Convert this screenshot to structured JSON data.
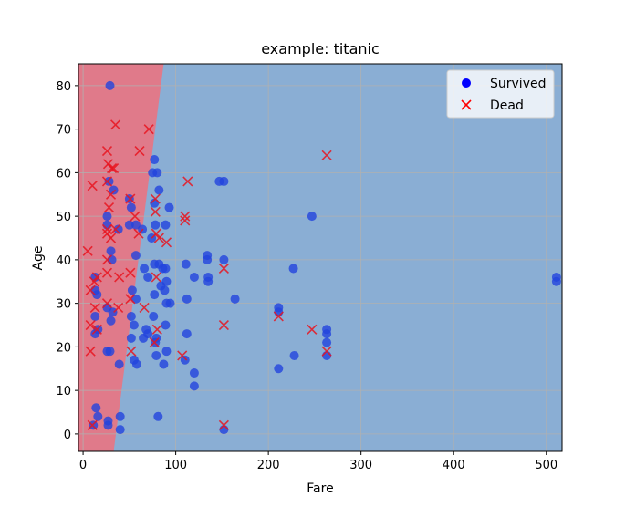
{
  "chart_data": {
    "type": "scatter",
    "title": "example: titanic",
    "xlabel": "Fare",
    "ylabel": "Age",
    "xlim": [
      -5,
      517
    ],
    "ylim": [
      -4,
      85
    ],
    "xticks": [
      0,
      100,
      200,
      300,
      400,
      500
    ],
    "yticks": [
      0,
      10,
      20,
      30,
      40,
      50,
      60,
      70,
      80
    ],
    "grid": true,
    "legend": {
      "position": "top-right"
    },
    "decision_regions": {
      "dead_region_color": "#e07a8a",
      "survived_region_color": "#8aaed4",
      "boundary": [
        [
          33,
          -4
        ],
        [
          87,
          85
        ]
      ]
    },
    "series": [
      {
        "name": "Survived",
        "marker": "circle",
        "color": "#2244dd",
        "points": [
          [
            29,
            80
          ],
          [
            77,
            63
          ],
          [
            75,
            60
          ],
          [
            80,
            60
          ],
          [
            28,
            58
          ],
          [
            147,
            58
          ],
          [
            152,
            58
          ],
          [
            82,
            56
          ],
          [
            33,
            56
          ],
          [
            50,
            54
          ],
          [
            77,
            53
          ],
          [
            52,
            52
          ],
          [
            93,
            52
          ],
          [
            26,
            50
          ],
          [
            247,
            50
          ],
          [
            26,
            48
          ],
          [
            50,
            48
          ],
          [
            57,
            48
          ],
          [
            78,
            48
          ],
          [
            89,
            48
          ],
          [
            38,
            47
          ],
          [
            64,
            47
          ],
          [
            74,
            45
          ],
          [
            30,
            42
          ],
          [
            31,
            40
          ],
          [
            57,
            41
          ],
          [
            134,
            41
          ],
          [
            134,
            40
          ],
          [
            152,
            40
          ],
          [
            111,
            39
          ],
          [
            82,
            39
          ],
          [
            77,
            39
          ],
          [
            66,
            38
          ],
          [
            86,
            38
          ],
          [
            89,
            38
          ],
          [
            227,
            38
          ],
          [
            70,
            36
          ],
          [
            120,
            36
          ],
          [
            135,
            35
          ],
          [
            135,
            36
          ],
          [
            84,
            34
          ],
          [
            90,
            35
          ],
          [
            88,
            33
          ],
          [
            53,
            33
          ],
          [
            511,
            35
          ],
          [
            511,
            36
          ],
          [
            13,
            36
          ],
          [
            13,
            33
          ],
          [
            15,
            32
          ],
          [
            57,
            31
          ],
          [
            77,
            32
          ],
          [
            112,
            31
          ],
          [
            164,
            31
          ],
          [
            90,
            30
          ],
          [
            94,
            30
          ],
          [
            26,
            29
          ],
          [
            211,
            29
          ],
          [
            211,
            28
          ],
          [
            32,
            28
          ],
          [
            52,
            27
          ],
          [
            76,
            27
          ],
          [
            13,
            27
          ],
          [
            30,
            26
          ],
          [
            55,
            25
          ],
          [
            89,
            25
          ],
          [
            16,
            24
          ],
          [
            68,
            24
          ],
          [
            263,
            24
          ],
          [
            263,
            23
          ],
          [
            70,
            23
          ],
          [
            52,
            22
          ],
          [
            65,
            22
          ],
          [
            13,
            23
          ],
          [
            79,
            22
          ],
          [
            112,
            23
          ],
          [
            263,
            21
          ],
          [
            78,
            21
          ],
          [
            26,
            19
          ],
          [
            29,
            19
          ],
          [
            90,
            19
          ],
          [
            79,
            18
          ],
          [
            228,
            18
          ],
          [
            263,
            18
          ],
          [
            55,
            17
          ],
          [
            110,
            17
          ],
          [
            58,
            16
          ],
          [
            87,
            16
          ],
          [
            39,
            16
          ],
          [
            211,
            15
          ],
          [
            120,
            14
          ],
          [
            120,
            11
          ],
          [
            16,
            4
          ],
          [
            40,
            4
          ],
          [
            81,
            4
          ],
          [
            27,
            3
          ],
          [
            27,
            2
          ],
          [
            14,
            6
          ],
          [
            40,
            1
          ],
          [
            152,
            1
          ],
          [
            11,
            2
          ]
        ]
      },
      {
        "name": "Dead",
        "marker": "x",
        "color": "#e8141e",
        "points": [
          [
            35,
            71
          ],
          [
            71,
            70
          ],
          [
            263,
            64
          ],
          [
            26,
            65
          ],
          [
            61,
            65
          ],
          [
            27,
            62
          ],
          [
            31,
            61
          ],
          [
            33,
            61
          ],
          [
            26,
            58
          ],
          [
            113,
            58
          ],
          [
            10,
            57
          ],
          [
            30,
            55
          ],
          [
            51,
            54
          ],
          [
            78,
            54
          ],
          [
            28,
            52
          ],
          [
            78,
            51
          ],
          [
            110,
            50
          ],
          [
            110,
            49
          ],
          [
            56,
            50
          ],
          [
            26,
            47
          ],
          [
            35,
            47
          ],
          [
            26,
            46
          ],
          [
            30,
            45
          ],
          [
            82,
            45
          ],
          [
            90,
            44
          ],
          [
            79,
            46
          ],
          [
            60,
            46
          ],
          [
            5,
            42
          ],
          [
            26,
            40
          ],
          [
            15,
            36
          ],
          [
            26,
            37
          ],
          [
            39,
            36
          ],
          [
            79,
            36
          ],
          [
            51,
            37
          ],
          [
            152,
            38
          ],
          [
            12,
            35
          ],
          [
            8,
            33
          ],
          [
            26,
            30
          ],
          [
            13,
            29
          ],
          [
            51,
            31
          ],
          [
            38,
            29
          ],
          [
            66,
            29
          ],
          [
            211,
            27
          ],
          [
            8,
            25
          ],
          [
            152,
            25
          ],
          [
            247,
            24
          ],
          [
            80,
            24
          ],
          [
            52,
            19
          ],
          [
            8,
            19
          ],
          [
            263,
            19
          ],
          [
            107,
            18
          ],
          [
            77,
            21
          ],
          [
            152,
            2
          ],
          [
            10,
            2
          ],
          [
            15,
            24
          ]
        ]
      }
    ]
  }
}
